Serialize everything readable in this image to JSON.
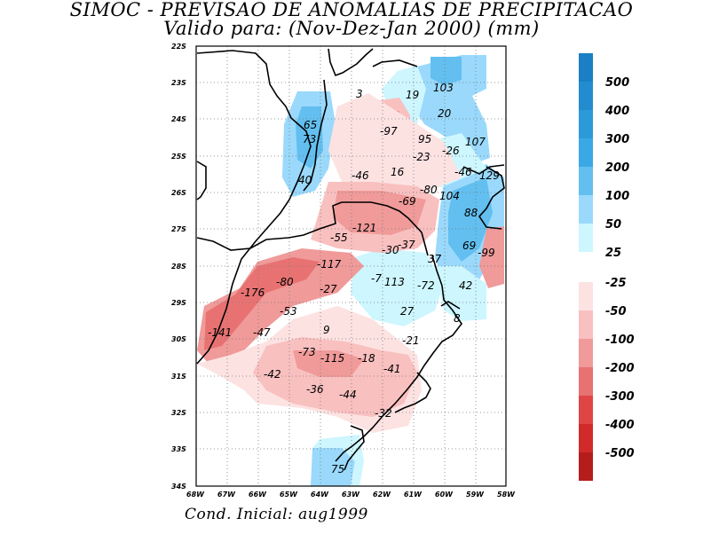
{
  "title_line1": "SIMOC - PREVISAO DE ANOMALIAS DE PRECIPITACAO",
  "title_line2": "Valido para: (Nov-Dez-Jan 2000) (mm)",
  "footer": "Cond. Inicial: aug1999",
  "axes": {
    "lat_labels": [
      "22S",
      "23S",
      "24S",
      "25S",
      "26S",
      "27S",
      "28S",
      "29S",
      "30S",
      "31S",
      "32S",
      "33S",
      "34S"
    ],
    "lon_labels": [
      "68W",
      "67W",
      "66W",
      "65W",
      "64W",
      "63W",
      "62W",
      "61W",
      "60W",
      "59W",
      "58W"
    ]
  },
  "legend": {
    "positive": [
      {
        "label": "500",
        "color": "#1a7fc4"
      },
      {
        "label": "400",
        "color": "#238ccf"
      },
      {
        "label": "300",
        "color": "#2c9ad9"
      },
      {
        "label": "200",
        "color": "#3aa8e4"
      },
      {
        "label": "100",
        "color": "#62bff0"
      },
      {
        "label": "50",
        "color": "#9ad9fb"
      },
      {
        "label": "25",
        "color": "#cdf6ff"
      }
    ],
    "negative": [
      {
        "label": "-25",
        "color": "#fde2e2"
      },
      {
        "label": "-50",
        "color": "#f9c0c0"
      },
      {
        "label": "-100",
        "color": "#f09a9a"
      },
      {
        "label": "-200",
        "color": "#e87272"
      },
      {
        "label": "-300",
        "color": "#e04545"
      },
      {
        "label": "-400",
        "color": "#d02a2a"
      },
      {
        "label": "-500",
        "color": "#b51d1d"
      }
    ]
  },
  "values": [
    {
      "label": "3"
    },
    {
      "label": "19"
    },
    {
      "label": "103"
    },
    {
      "label": "65"
    },
    {
      "label": "-97"
    },
    {
      "label": "20"
    },
    {
      "label": "73"
    },
    {
      "label": "95"
    },
    {
      "label": "107"
    },
    {
      "label": "-26"
    },
    {
      "label": "-23"
    },
    {
      "label": "16"
    },
    {
      "label": "-46"
    },
    {
      "label": "-46"
    },
    {
      "label": "129"
    },
    {
      "label": "40"
    },
    {
      "label": "-80"
    },
    {
      "label": "104"
    },
    {
      "label": "-69"
    },
    {
      "label": "88"
    },
    {
      "label": "-121"
    },
    {
      "label": "-55"
    },
    {
      "label": "-37"
    },
    {
      "label": "-30"
    },
    {
      "label": "69"
    },
    {
      "label": "-99"
    },
    {
      "label": "-117"
    },
    {
      "label": "37"
    },
    {
      "label": "-7"
    },
    {
      "label": "113"
    },
    {
      "label": "-80"
    },
    {
      "label": "-72"
    },
    {
      "label": "42"
    },
    {
      "label": "-176"
    },
    {
      "label": "-27"
    },
    {
      "label": "-53"
    },
    {
      "label": "27"
    },
    {
      "label": "8"
    },
    {
      "label": "9"
    },
    {
      "label": "-141"
    },
    {
      "label": "-47"
    },
    {
      "label": "-21"
    },
    {
      "label": "-73"
    },
    {
      "label": "-115"
    },
    {
      "label": "-18"
    },
    {
      "label": "-42"
    },
    {
      "label": "-41"
    },
    {
      "label": "-36"
    },
    {
      "label": "-44"
    },
    {
      "label": "-32"
    },
    {
      "label": "75"
    }
  ]
}
